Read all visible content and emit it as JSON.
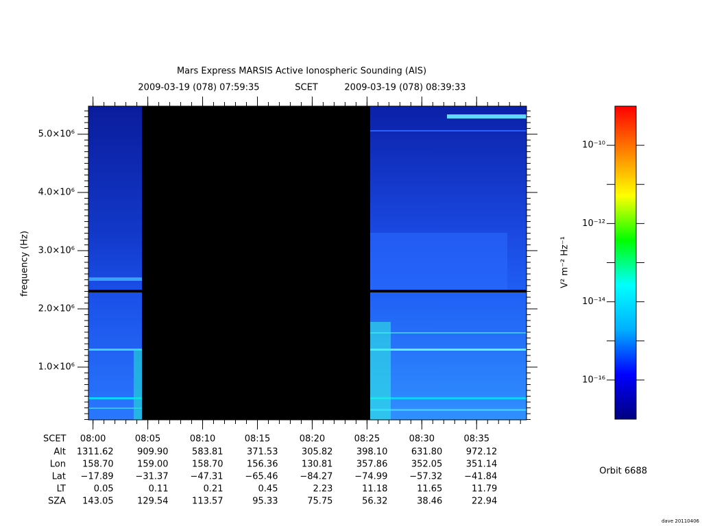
{
  "chart_data": {
    "type": "spectrogram",
    "title": "Mars Express MARSIS Active Ionospheric Sounding (AIS)",
    "time_start": "2009-03-19 (078) 07:59:35",
    "time_label": "SCET",
    "time_end": "2009-03-19 (078) 08:39:33",
    "ylabel": "frequency (Hz)",
    "ylim": [
      94000,
      5482000
    ],
    "yticks": [
      {
        "value": 1000000,
        "label": "1.0×10⁶"
      },
      {
        "value": 2000000,
        "label": "2.0×10⁶"
      },
      {
        "value": 3000000,
        "label": "3.0×10⁶"
      },
      {
        "value": 4000000,
        "label": "4.0×10⁶"
      },
      {
        "value": 5000000,
        "label": "5.0×10⁶"
      }
    ],
    "xlim": [
      479.583,
      519.55
    ],
    "xticks": [
      {
        "value": 480,
        "label": "08:00"
      },
      {
        "value": 485,
        "label": "08:05"
      },
      {
        "value": 490,
        "label": "08:10"
      },
      {
        "value": 495,
        "label": "08:15"
      },
      {
        "value": 500,
        "label": "08:20"
      },
      {
        "value": 505,
        "label": "08:25"
      },
      {
        "value": 510,
        "label": "08:30"
      },
      {
        "value": 515,
        "label": "08:35"
      }
    ],
    "colorbar": {
      "label": "V² m⁻² Hz⁻¹",
      "scale": "log",
      "lim": [
        1e-17,
        1e-09
      ],
      "ticks": [
        {
          "value": 1e-10,
          "label": "10⁻¹⁰"
        },
        {
          "value": 1e-12,
          "label": "10⁻¹²"
        },
        {
          "value": 1e-14,
          "label": "10⁻¹⁴"
        },
        {
          "value": 1e-16,
          "label": "10⁻¹⁶"
        }
      ],
      "colormap": [
        "#00007f",
        "#0000ff",
        "#00b0ff",
        "#00ffff",
        "#00ff00",
        "#ffff00",
        "#ff8000",
        "#ff0000"
      ]
    }
  },
  "ephemeris": {
    "scet_label": "SCET",
    "rows": [
      {
        "label": "Alt",
        "values": [
          "1311.62",
          "909.90",
          "583.81",
          "371.53",
          "305.82",
          "398.10",
          "631.80",
          "972.12"
        ]
      },
      {
        "label": "Lon",
        "values": [
          "158.70",
          "159.00",
          "158.70",
          "156.36",
          "130.81",
          "357.86",
          "352.05",
          "351.14"
        ]
      },
      {
        "label": "Lat",
        "values": [
          "−17.89",
          "−31.37",
          "−47.31",
          "−65.46",
          "−84.27",
          "−74.99",
          "−57.32",
          "−41.84"
        ]
      },
      {
        "label": "LT",
        "values": [
          "0.05",
          "0.11",
          "0.21",
          "0.45",
          "2.23",
          "11.18",
          "11.65",
          "11.79"
        ]
      },
      {
        "label": "SZA",
        "values": [
          "143.05",
          "129.54",
          "113.57",
          "95.33",
          "75.75",
          "56.32",
          "38.46",
          "22.94"
        ]
      }
    ]
  },
  "orbit": "Orbit 6688",
  "credit": "dave 20110406"
}
